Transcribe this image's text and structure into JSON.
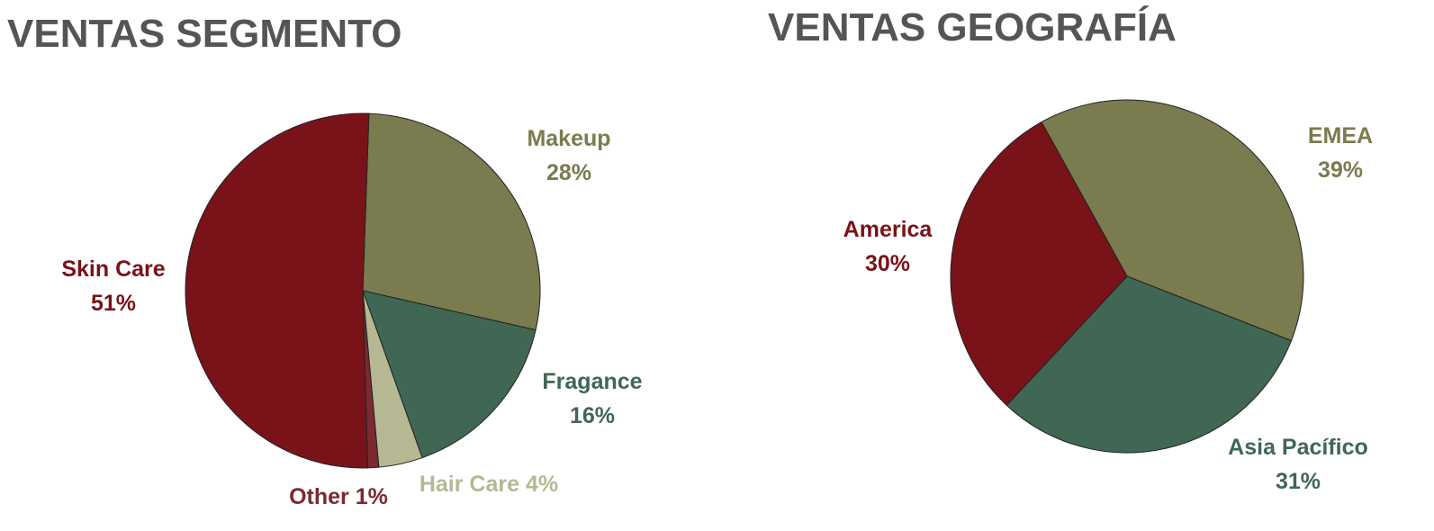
{
  "chart_data": [
    {
      "type": "pie",
      "title": "VENTAS SEGMENTO",
      "categories": [
        "Makeup",
        "Fragance",
        "Hair Care",
        "Other",
        "Skin Care"
      ],
      "values": [
        28,
        16,
        4,
        1,
        51
      ],
      "value_labels": [
        "28%",
        "16%",
        "4%",
        "1%",
        "51%"
      ],
      "colors": [
        "#7a7b4e",
        "#3f6753",
        "#b6b894",
        "#7a2a30",
        "#7a1219"
      ]
    },
    {
      "type": "pie",
      "title": "VENTAS GEOGRAFÍA",
      "categories": [
        "EMEA",
        "Asia Pacífico",
        "America"
      ],
      "values": [
        39,
        31,
        30
      ],
      "value_labels": [
        "39%",
        "31%",
        "30%"
      ],
      "colors": [
        "#7a7b4e",
        "#3f6753",
        "#7a1219"
      ]
    }
  ]
}
